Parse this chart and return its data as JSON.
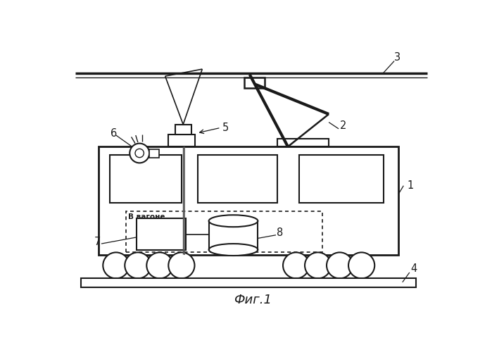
{
  "title": "Фиг.1",
  "bg_color": "#ffffff",
  "line_color": "#1a1a1a"
}
